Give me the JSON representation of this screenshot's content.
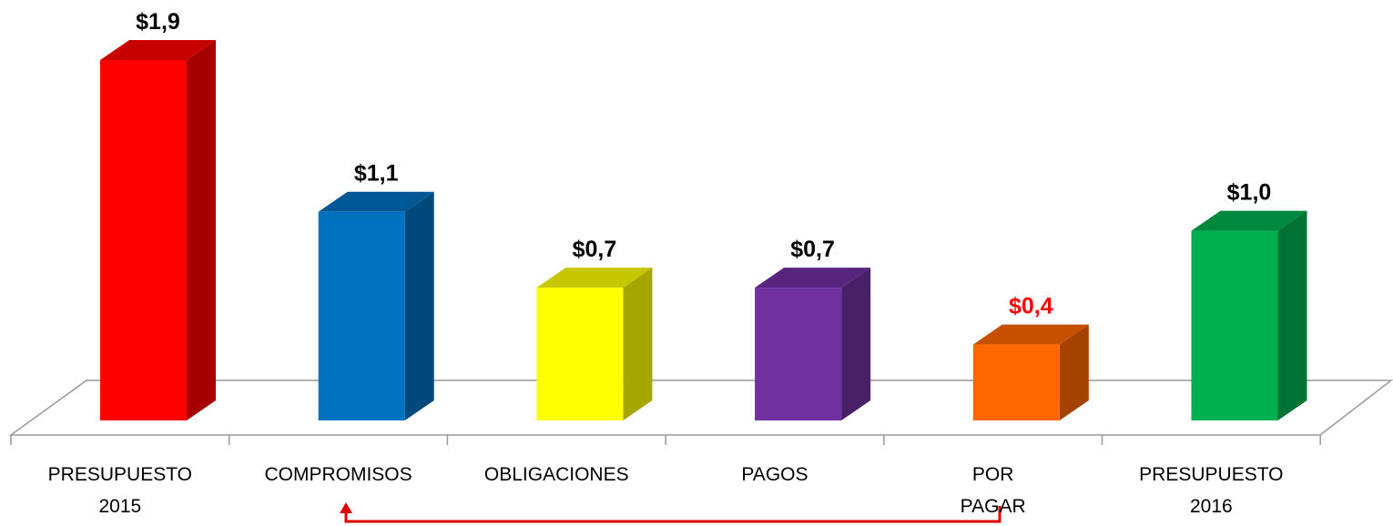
{
  "chart_data": {
    "type": "bar3d",
    "categories": [
      "PRESUPUESTO 2015",
      "COMPROMISOS",
      "OBLIGACIONES",
      "PAGOS",
      "POR PAGAR",
      "PRESUPUESTO 2016"
    ],
    "values": [
      1.9,
      1.1,
      0.7,
      0.7,
      0.4,
      1.0
    ],
    "value_labels": [
      "$1,9",
      "$1,1",
      "$0,7",
      "$0,7",
      "$0,4",
      "$1,0"
    ],
    "colors": [
      "#ff0000",
      "#0070c0",
      "#ffff00",
      "#7030a0",
      "#ff6600",
      "#00b050"
    ],
    "value_label_colors": [
      "#000000",
      "#000000",
      "#000000",
      "#000000",
      "#ff0000",
      "#000000"
    ]
  }
}
